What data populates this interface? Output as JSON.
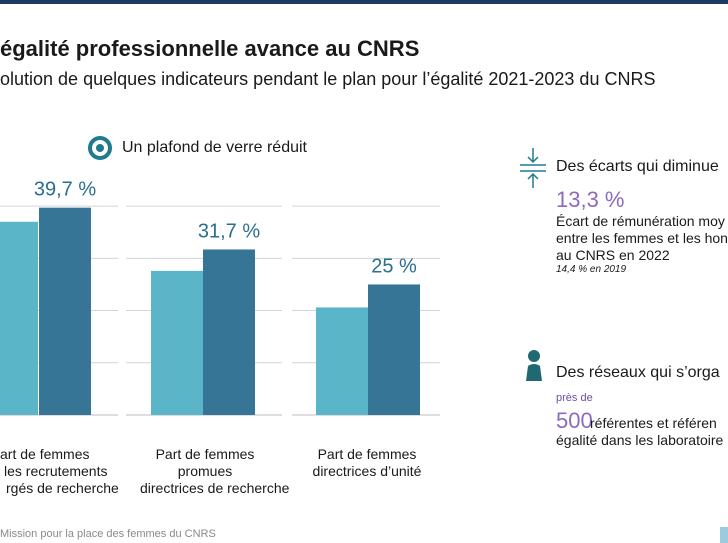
{
  "header": {
    "title": "égalité professionnelle avance au CNRS",
    "subtitle": "olution de quelques indicateurs pendant le plan pour l’égalité 2021-2023 du CNRS"
  },
  "legend": {
    "label": "Un plafond de verre réduit"
  },
  "chart_data": {
    "type": "bar",
    "categories": [
      [
        "art de femmes",
        "les recrutements",
        "rgés de recherche"
      ],
      [
        "Part de femmes",
        "promues",
        "directrices de recherche"
      ],
      [
        "Part de femmes",
        "directrices d’unité"
      ]
    ],
    "series": [
      {
        "values": [
          37.0,
          27.6,
          20.6
        ]
      },
      {
        "values": [
          39.7,
          31.7,
          25.0
        ]
      }
    ],
    "value_labels": [
      "39,7 %",
      "31,7 %",
      "25 %"
    ],
    "colors": [
      "#5bb5c8",
      "#367596"
    ],
    "ylim": [
      0,
      45
    ],
    "grid": true
  },
  "side": {
    "ecarts": {
      "heading": "Des écarts qui diminue",
      "value": "13,3 %",
      "desc1": "Écart de rémunération moy",
      "desc2": "entre les femmes et les hon",
      "desc3": "au CNRS en 2022",
      "note": "14,4 % en 2019",
      "icon_color": "#1f7b8e"
    },
    "reseaux": {
      "heading": "Des réseaux qui s’orga",
      "pres": "près de",
      "value": "500",
      "desc1": "référentes et référen",
      "desc2": "égalité dans les laboratoire",
      "icon_color": "#1f6a72"
    }
  },
  "footer": {
    "source": "Mission pour la place des femmes du CNRS"
  }
}
